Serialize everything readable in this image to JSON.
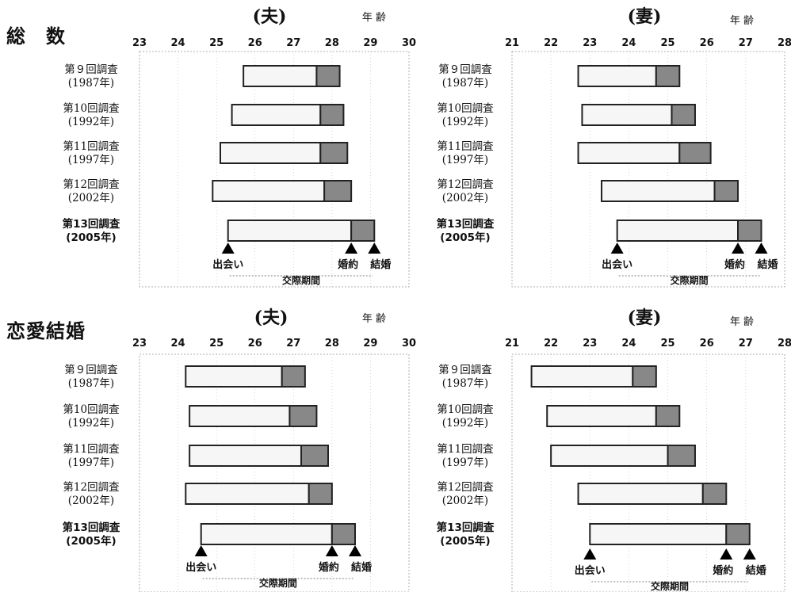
{
  "sections": [
    {
      "title": "総　数"
    },
    {
      "title": "恋愛結婚"
    }
  ],
  "age_label": "年 齢",
  "surveys": [
    "第９回調査\n(1987年)",
    "第10回調査\n(1992年)",
    "第11回調査\n(1997年)",
    "第12回調査\n(2002年)",
    "第13回調査\n(2005年)"
  ],
  "markers": {
    "meet": "出会い",
    "engage": "婚約",
    "marry": "結婚",
    "courtship": "交際期間"
  },
  "colors": {
    "bar_fill": "#f6f6f6",
    "bar_border": "#222222",
    "engage_fill": "#888888",
    "axis_guides": "#999999"
  },
  "chart_data": [
    {
      "type": "bar",
      "title": "(夫)",
      "section": "総　数",
      "xlabel": "年 齢",
      "xlim": [
        23,
        30
      ],
      "ticks": [
        23,
        24,
        25,
        26,
        27,
        28,
        29,
        30
      ],
      "categories": [
        "第９回調査 (1987年)",
        "第10回調査 (1992年)",
        "第11回調査 (1997年)",
        "第12回調査 (2002年)",
        "第13回調査 (2005年)"
      ],
      "series": [
        {
          "name": "出会い",
          "values": [
            25.7,
            25.4,
            25.1,
            24.9,
            25.3
          ]
        },
        {
          "name": "婚約",
          "values": [
            27.6,
            27.7,
            27.7,
            27.8,
            28.5
          ]
        },
        {
          "name": "結婚",
          "values": [
            28.2,
            28.3,
            28.4,
            28.5,
            29.1
          ]
        }
      ]
    },
    {
      "type": "bar",
      "title": "(妻)",
      "section": "総　数",
      "xlabel": "年 齢",
      "xlim": [
        21,
        28
      ],
      "ticks": [
        21,
        22,
        23,
        24,
        25,
        26,
        27,
        28
      ],
      "categories": [
        "第９回調査 (1987年)",
        "第10回調査 (1992年)",
        "第11回調査 (1997年)",
        "第12回調査 (2002年)",
        "第13回調査 (2005年)"
      ],
      "series": [
        {
          "name": "出会い",
          "values": [
            22.7,
            22.8,
            22.7,
            23.3,
            23.7
          ]
        },
        {
          "name": "婚約",
          "values": [
            24.7,
            25.1,
            25.3,
            26.2,
            26.8
          ]
        },
        {
          "name": "結婚",
          "values": [
            25.3,
            25.7,
            26.1,
            26.8,
            27.4
          ]
        }
      ]
    },
    {
      "type": "bar",
      "title": "(夫)",
      "section": "恋愛結婚",
      "xlabel": "年 齢",
      "xlim": [
        23,
        30
      ],
      "ticks": [
        23,
        24,
        25,
        26,
        27,
        28,
        29,
        30
      ],
      "categories": [
        "第９回調査 (1987年)",
        "第10回調査 (1992年)",
        "第11回調査 (1997年)",
        "第12回調査 (2002年)",
        "第13回調査 (2005年)"
      ],
      "series": [
        {
          "name": "出会い",
          "values": [
            24.2,
            24.3,
            24.3,
            24.2,
            24.6
          ]
        },
        {
          "name": "婚約",
          "values": [
            26.7,
            26.9,
            27.2,
            27.4,
            28.0
          ]
        },
        {
          "name": "結婚",
          "values": [
            27.3,
            27.6,
            27.9,
            28.0,
            28.6
          ]
        }
      ]
    },
    {
      "type": "bar",
      "title": "(妻)",
      "section": "恋愛結婚",
      "xlabel": "年 齢",
      "xlim": [
        21,
        28
      ],
      "ticks": [
        21,
        22,
        23,
        24,
        25,
        26,
        27,
        28
      ],
      "categories": [
        "第９回調査 (1987年)",
        "第10回調査 (1992年)",
        "第11回調査 (1997年)",
        "第12回調査 (2002年)",
        "第13回調査 (2005年)"
      ],
      "series": [
        {
          "name": "出会い",
          "values": [
            21.5,
            21.9,
            22.0,
            22.7,
            23.0
          ]
        },
        {
          "name": "婚約",
          "values": [
            24.1,
            24.7,
            25.0,
            25.9,
            26.5
          ]
        },
        {
          "name": "結婚",
          "values": [
            24.7,
            25.3,
            25.7,
            26.5,
            27.1
          ]
        }
      ]
    }
  ]
}
